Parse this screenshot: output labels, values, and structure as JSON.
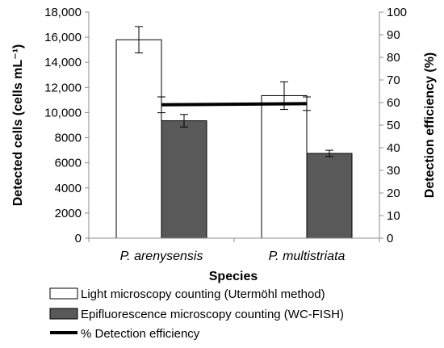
{
  "chart_data": {
    "type": "bar",
    "categories": [
      "P. arenysensis",
      "P. multistriata"
    ],
    "series": [
      {
        "name": "Light microscopy counting (Utermöhl method)",
        "axis": "left",
        "values": [
          15800,
          11350
        ],
        "error": [
          1050,
          1100
        ],
        "color": "#ffffff"
      },
      {
        "name": "Epifluorescence microscopy counting (WC-FISH)",
        "axis": "left",
        "values": [
          9350,
          6750
        ],
        "error": [
          500,
          250
        ],
        "color": "#595959"
      },
      {
        "name": "% Detection efficiency",
        "axis": "right",
        "type": "line",
        "values": [
          59,
          59.5
        ],
        "error": [
          3.5,
          3
        ],
        "color": "#000000"
      }
    ],
    "xlabel": "Species",
    "ylabel": "Detected cells (cells mL⁻¹)",
    "y2label": "Detection efficiency (%)",
    "ylim": [
      0,
      18000
    ],
    "y2lim": [
      0,
      100
    ],
    "yticks": [
      "0",
      "2000",
      "4000",
      "6000",
      "8000",
      "10,000",
      "12,000",
      "14,000",
      "16,000",
      "18,000"
    ],
    "y2ticks": [
      "0",
      "10",
      "20",
      "30",
      "40",
      "50",
      "60",
      "70",
      "80",
      "90",
      "100"
    ],
    "legend_position": "bottom",
    "grid": false
  }
}
